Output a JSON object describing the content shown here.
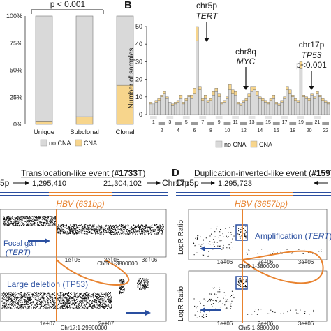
{
  "panelA": {
    "pvalue": "p < 0.001",
    "legend": [
      "no CNA",
      "CNA"
    ],
    "chart_data": {
      "type": "bar",
      "categories": [
        "Unique",
        "Subclonal",
        "Clonal"
      ],
      "series": [
        {
          "name": "CNA",
          "values": [
            3,
            7,
            36
          ]
        },
        {
          "name": "no CNA",
          "values": [
            97,
            93,
            64
          ]
        }
      ],
      "y_ticks": [
        "0%",
        "25%",
        "50%",
        "75%",
        "100%"
      ],
      "ylim": [
        0,
        100
      ],
      "colors": {
        "CNA": "#f7d58c",
        "no CNA": "#d9d9d9"
      }
    }
  },
  "panelB": {
    "label": "B",
    "ylabel": "Number of samples",
    "y_ticks": [
      "0",
      "10",
      "20",
      "30",
      "40",
      "50"
    ],
    "chromosomes_row1": [
      "1",
      "3",
      "5",
      "7",
      "9",
      "11",
      "13",
      "15",
      "17",
      "19",
      "21"
    ],
    "chromosomes_row2": [
      "2",
      "4",
      "6",
      "8",
      "10",
      "12",
      "14",
      "16",
      "18",
      "20",
      "22"
    ],
    "legend": [
      "no CNA",
      "CNA"
    ],
    "annotations": [
      {
        "line1": "chr5p",
        "line2": "TERT"
      },
      {
        "line1": "chr8q",
        "line2": "MYC"
      },
      {
        "line1": "chr17p",
        "line2": "TP53",
        "line3": "p<0.001"
      }
    ]
  },
  "panelC": {
    "title_prefix": "Translocation-like event (",
    "title_id": "#1733T",
    "title_suffix": ")",
    "chr_left": "5p",
    "coord_left": "1,295,410",
    "coord_right": "21,304,102",
    "chr_right": "Chr17p",
    "hbv": "HBV (631bp)",
    "focal_gain": "Focal gain",
    "tert": "(TERT)",
    "large_deletion": "Large deletion (TP53)",
    "x_ticks_top": [
      "1e+06",
      "2e+06",
      "3e+06"
    ],
    "x_ticks_bottom": [
      "1e+07",
      "2e+07"
    ],
    "xlabel_top": "Chr5:1-3800000",
    "xlabel_bottom": "Chr17:1-29500000"
  },
  "panelD": {
    "label": "D",
    "title_prefix": "Duplication-inverted-like event (",
    "title_id": "#1597T",
    "title_suffix": ")",
    "chr_left": "Chr5p",
    "coord_left": "1,295,723",
    "hbv": "HBV (3657bp)",
    "amplification": "Amplification (",
    "amplification_gene": "TERT",
    "amplification_close": ")",
    "ylabel": "LogR Ratio",
    "x_ticks": [
      "1e+06",
      "2e+06",
      "3e+06"
    ],
    "xlabel": "Chr5:1-3800000"
  }
}
